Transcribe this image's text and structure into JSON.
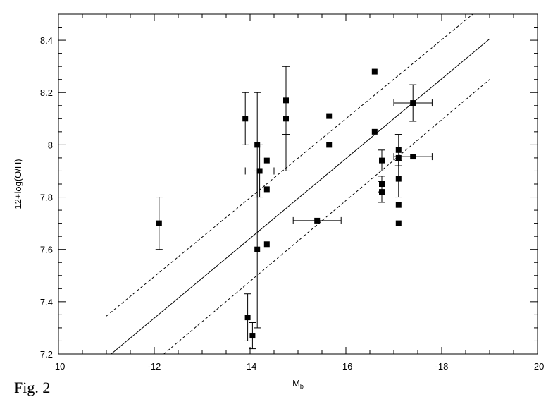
{
  "figure_label": "Fig. 2",
  "chart_data": {
    "type": "scatter",
    "title": "",
    "xlabel": "M",
    "xlabel_subscript": "b",
    "ylabel": "12+log(O/H)",
    "xlim": [
      -10,
      -20
    ],
    "ylim": [
      7.2,
      8.5
    ],
    "xticks": [
      -10,
      -12,
      -14,
      -16,
      -18,
      -20
    ],
    "xtick_labels": [
      "-10",
      "-12",
      "-14",
      "-16",
      "-18",
      "-20"
    ],
    "yticks": [
      7.2,
      7.4,
      7.6,
      7.8,
      8.0,
      8.2,
      8.4
    ],
    "ytick_labels": [
      "7.2",
      "7.4",
      "7.6",
      "7.8",
      "8",
      "8.2",
      "8.4"
    ],
    "grid": false,
    "points": [
      {
        "x": -12.1,
        "y": 7.7,
        "yerr": 0.1,
        "xerr": 0
      },
      {
        "x": -13.9,
        "y": 8.1,
        "yerr": 0.1,
        "xerr": 0
      },
      {
        "x": -13.95,
        "y": 7.34,
        "yerr": 0.09,
        "xerr": 0
      },
      {
        "x": -14.05,
        "y": 7.27,
        "yerr": 0.05,
        "xerr": 0
      },
      {
        "x": -14.15,
        "y": 8.0,
        "yerr": 0.2,
        "xerr": 0
      },
      {
        "x": -14.15,
        "y": 7.6,
        "yerr": 0.3,
        "xerr": 0
      },
      {
        "x": -14.2,
        "y": 7.9,
        "yerr": 0.1,
        "xerr": 0.3
      },
      {
        "x": -14.35,
        "y": 7.94,
        "yerr": 0,
        "xerr": 0
      },
      {
        "x": -14.35,
        "y": 7.83,
        "yerr": 0,
        "xerr": 0
      },
      {
        "x": -14.35,
        "y": 7.62,
        "yerr": 0,
        "xerr": 0
      },
      {
        "x": -14.75,
        "y": 8.17,
        "yerr": 0.13,
        "xerr": 0
      },
      {
        "x": -14.75,
        "y": 8.1,
        "yerr": 0.2,
        "xerr": 0
      },
      {
        "x": -15.4,
        "y": 7.71,
        "yerr": 0,
        "xerr": 0.5
      },
      {
        "x": -15.65,
        "y": 8.11,
        "yerr": 0,
        "xerr": 0
      },
      {
        "x": -15.65,
        "y": 8.0,
        "yerr": 0,
        "xerr": 0
      },
      {
        "x": -16.6,
        "y": 8.28,
        "yerr": 0,
        "xerr": 0
      },
      {
        "x": -16.6,
        "y": 8.05,
        "yerr": 0,
        "xerr": 0
      },
      {
        "x": -16.75,
        "y": 7.94,
        "yerr": 0.04,
        "xerr": 0
      },
      {
        "x": -16.75,
        "y": 7.85,
        "yerr": 0.03,
        "xerr": 0
      },
      {
        "x": -16.75,
        "y": 7.82,
        "yerr": 0.04,
        "xerr": 0
      },
      {
        "x": -17.1,
        "y": 7.98,
        "yerr": 0.06,
        "xerr": 0
      },
      {
        "x": -17.1,
        "y": 7.95,
        "yerr": 0,
        "xerr": 0
      },
      {
        "x": -17.1,
        "y": 7.87,
        "yerr": 0.07,
        "xerr": 0
      },
      {
        "x": -17.1,
        "y": 7.77,
        "yerr": 0,
        "xerr": 0
      },
      {
        "x": -17.1,
        "y": 7.7,
        "yerr": 0,
        "xerr": 0
      },
      {
        "x": -17.4,
        "y": 8.16,
        "yerr": 0.07,
        "xerr": 0.4
      },
      {
        "x": -17.4,
        "y": 7.955,
        "yerr": 0,
        "xerr": 0.4
      }
    ],
    "lines": [
      {
        "style": "solid",
        "x": [
          -11.1,
          -19.0
        ],
        "y": [
          7.2,
          8.405
        ]
      },
      {
        "style": "dashed",
        "x": [
          -11.0,
          -18.65
        ],
        "y": [
          7.345,
          8.5
        ]
      },
      {
        "style": "dashed",
        "x": [
          -12.2,
          -19.0
        ],
        "y": [
          7.2,
          8.25
        ]
      }
    ]
  }
}
